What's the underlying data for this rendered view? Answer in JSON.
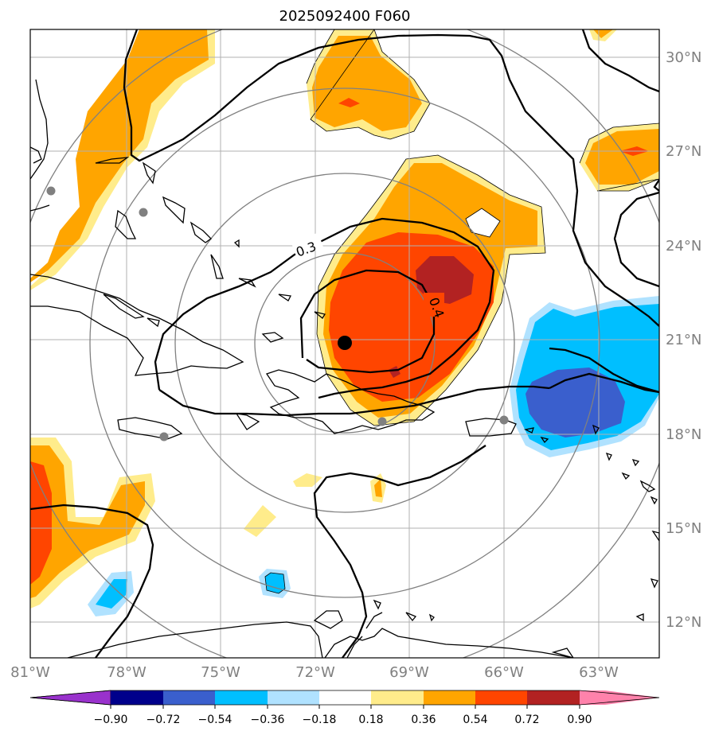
{
  "title": "2025092400 F060",
  "lon_labels": [
    "81°W",
    "78°W",
    "75°W",
    "72°W",
    "69°W",
    "66°W",
    "63°W"
  ],
  "lat_labels": [
    "30°N",
    "27°N",
    "24°N",
    "21°N",
    "18°N",
    "15°N",
    "12°N"
  ],
  "colorbar": {
    "ticks": [
      "−0.90",
      "−0.72",
      "−0.54",
      "−0.36",
      "−0.18",
      "0.18",
      "0.36",
      "0.54",
      "0.72",
      "0.90"
    ],
    "colors": [
      "#9932cc",
      "#00008b",
      "#3a5fcd",
      "#00bfff",
      "#b0e2ff",
      "#ffffff",
      "#ffec8b",
      "#ffa500",
      "#ff4500",
      "#b22222",
      "#ff82ab"
    ]
  },
  "contour_labels": [
    "0.3",
    "0.4"
  ],
  "colors": {
    "grid": "#b0b0b0",
    "range_rings": "#808080",
    "coast": "#000000",
    "center_marker": "#000000",
    "station": "#808080"
  }
}
